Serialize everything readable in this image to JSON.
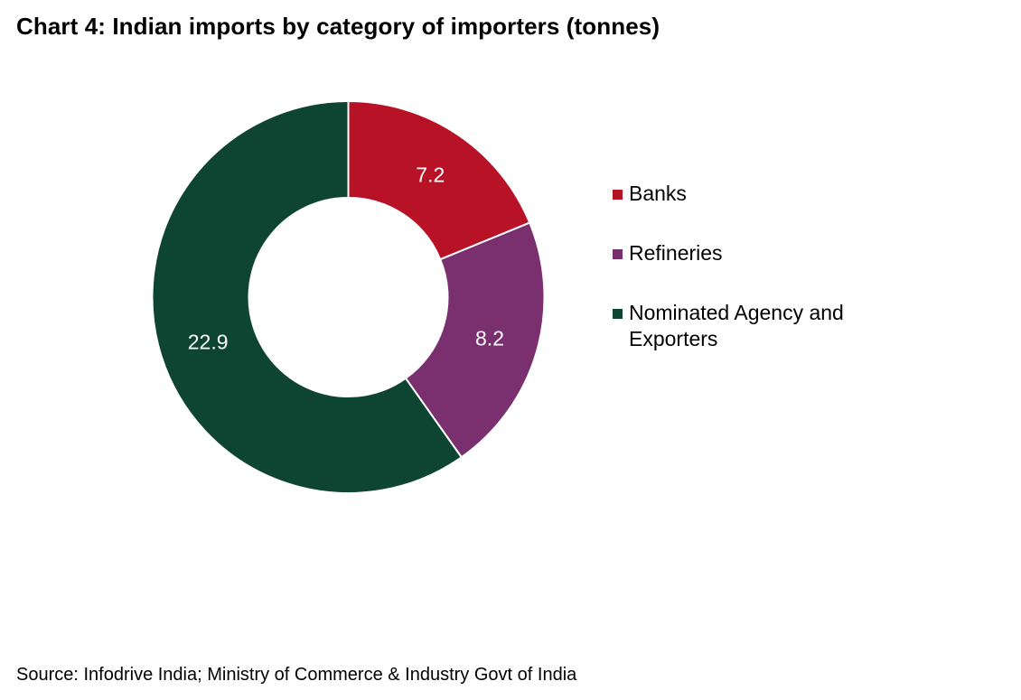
{
  "title": "Chart 4: Indian imports by category of importers (tonnes)",
  "source": "Source: Infodrive India; Ministry of Commerce & Industry Govt of India",
  "chart_data": {
    "type": "pie",
    "variant": "donut",
    "title": "Chart 4: Indian imports by category of importers (tonnes)",
    "categories": [
      "Banks",
      "Refineries",
      "Nominated Agency and Exporters"
    ],
    "values": [
      7.2,
      8.2,
      22.9
    ],
    "data_labels": [
      "7.2",
      "8.2",
      "22.9"
    ],
    "colors": [
      "#b81227",
      "#7a306f",
      "#0e4432"
    ],
    "label_color": "#ffffff",
    "legend_position": "right"
  }
}
